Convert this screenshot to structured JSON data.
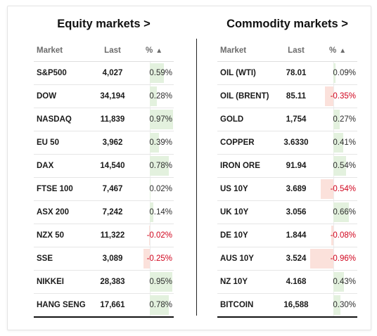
{
  "equity": {
    "title": "Equity markets >",
    "headers": {
      "market": "Market",
      "last": "Last",
      "pct": "%"
    },
    "rows": [
      {
        "name": "S&P500",
        "last": "4,027",
        "pct": "0.59%",
        "value": 0.59
      },
      {
        "name": "DOW",
        "last": "34,194",
        "pct": "0.28%",
        "value": 0.28
      },
      {
        "name": "NASDAQ",
        "last": "11,839",
        "pct": "0.97%",
        "value": 0.97
      },
      {
        "name": "EU 50",
        "last": "3,962",
        "pct": "0.39%",
        "value": 0.39
      },
      {
        "name": "DAX",
        "last": "14,540",
        "pct": "0.78%",
        "value": 0.78
      },
      {
        "name": "FTSE 100",
        "last": "7,467",
        "pct": "0.02%",
        "value": 0.02
      },
      {
        "name": "ASX 200",
        "last": "7,242",
        "pct": "0.14%",
        "value": 0.14
      },
      {
        "name": "NZX 50",
        "last": "11,322",
        "pct": "-0.02%",
        "value": -0.02
      },
      {
        "name": "SSE",
        "last": "3,089",
        "pct": "-0.25%",
        "value": -0.25
      },
      {
        "name": "NIKKEI",
        "last": "28,383",
        "pct": "0.95%",
        "value": 0.95
      },
      {
        "name": "HANG SENG",
        "last": "17,661",
        "pct": "0.78%",
        "value": 0.78
      }
    ]
  },
  "commodity": {
    "title": "Commodity markets >",
    "headers": {
      "market": "Market",
      "last": "Last",
      "pct": "%"
    },
    "rows": [
      {
        "name": "OIL (WTI)",
        "last": "78.01",
        "pct": "0.09%",
        "value": 0.09
      },
      {
        "name": "OIL (BRENT)",
        "last": "85.11",
        "pct": "-0.35%",
        "value": -0.35
      },
      {
        "name": "GOLD",
        "last": "1,754",
        "pct": "0.27%",
        "value": 0.27
      },
      {
        "name": "COPPER",
        "last": "3.6330",
        "pct": "0.41%",
        "value": 0.41
      },
      {
        "name": "IRON ORE",
        "last": "91.94",
        "pct": "0.54%",
        "value": 0.54
      },
      {
        "name": "US 10Y",
        "last": "3.689",
        "pct": "-0.54%",
        "value": -0.54
      },
      {
        "name": "UK 10Y",
        "last": "3.056",
        "pct": "0.66%",
        "value": 0.66
      },
      {
        "name": "DE 10Y",
        "last": "1.844",
        "pct": "-0.08%",
        "value": -0.08
      },
      {
        "name": "AUS 10Y",
        "last": "3.524",
        "pct": "-0.96%",
        "value": -0.96
      },
      {
        "name": "NZ 10Y",
        "last": "4.168",
        "pct": "0.43%",
        "value": 0.43
      },
      {
        "name": "BITCOIN",
        "last": "16,588",
        "pct": "0.30%",
        "value": 0.3
      }
    ]
  },
  "colors": {
    "positive_bar": "#e3f1de",
    "negative_bar": "#fbe1db",
    "negative_text": "#d0021b"
  },
  "icons": {
    "sort": "triangle-up-icon"
  }
}
